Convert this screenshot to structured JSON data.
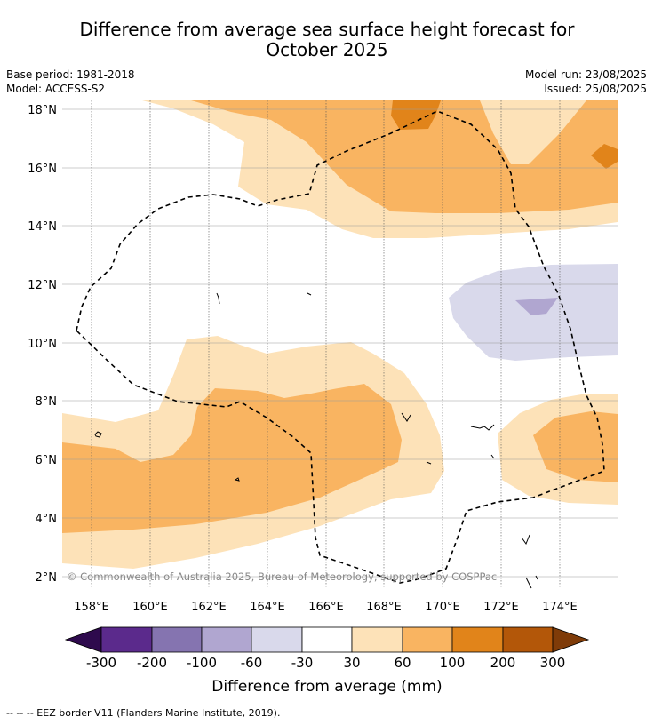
{
  "title_line1": "Difference from average sea surface height forecast for",
  "title_line2": "October 2025",
  "meta": {
    "base_period": "Base period: 1981-2018",
    "model": "Model: ACCESS-S2",
    "model_run": "Model run: 23/08/2025",
    "issued": "Issued: 25/08/2025"
  },
  "map": {
    "lon_labels": [
      "158°E",
      "160°E",
      "162°E",
      "164°E",
      "166°E",
      "168°E",
      "170°E",
      "172°E",
      "174°E"
    ],
    "lat_labels": [
      "18°N",
      "16°N",
      "14°N",
      "12°N",
      "10°N",
      "8°N",
      "6°N",
      "4°N",
      "2°N"
    ],
    "copyright": "© Commonwealth of Australia 2025, Bureau of Meteorology, supported by COSPPac"
  },
  "colorbar": {
    "tick_labels": [
      "-300",
      "-200",
      "-100",
      "-60",
      "-30",
      "30",
      "60",
      "100",
      "200",
      "300"
    ],
    "colors": [
      "#2e0a4d",
      "#5b2a8c",
      "#8574b0",
      "#b0a6d0",
      "#d9d9eb",
      "#ffffff",
      "#fde2b8",
      "#f9b461",
      "#e1841a",
      "#b35709",
      "#7f3b08"
    ],
    "label": "Difference from average (mm)"
  },
  "footer": "--  --  -- EEZ border V11 (Flanders Marine Institute, 2019)."
}
